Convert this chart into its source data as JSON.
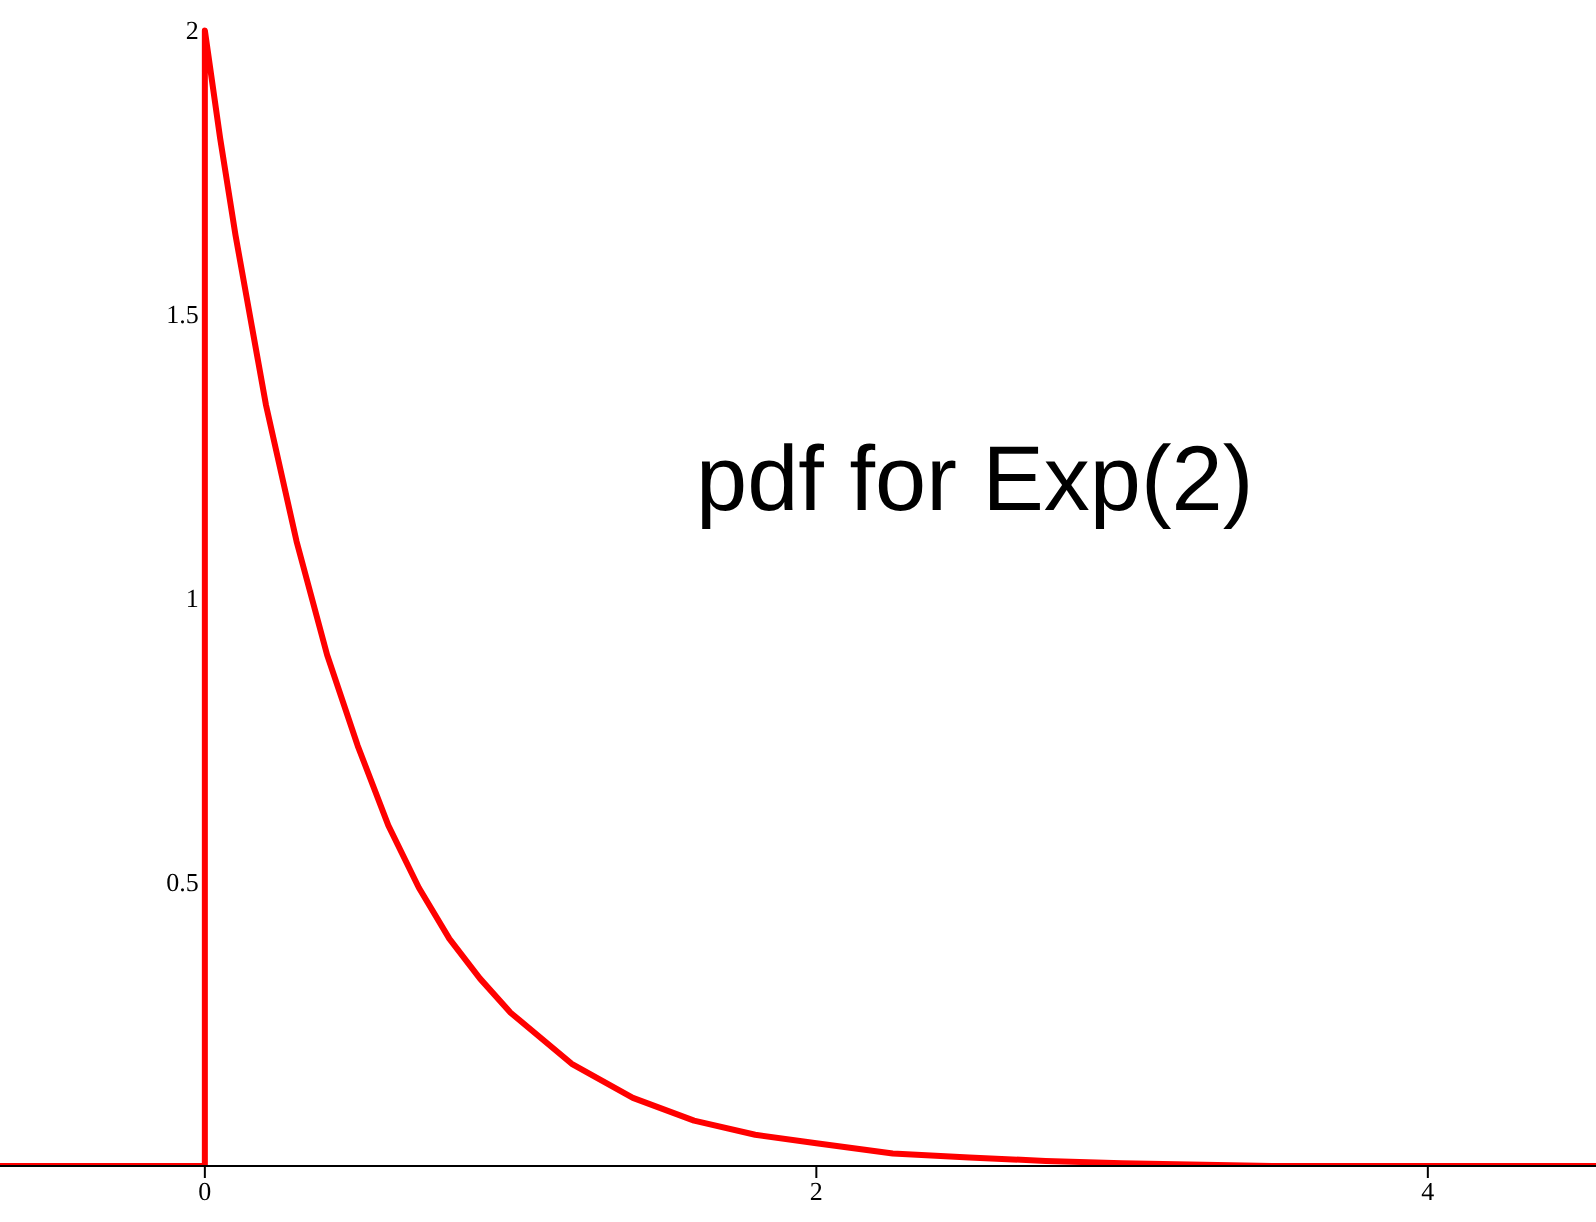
{
  "chart_data": {
    "type": "line",
    "annotations": [
      "pdf for Exp(2)"
    ],
    "series": [
      {
        "color": "#ff0000",
        "x": [
          -0.67,
          0,
          0,
          0.05,
          0.1,
          0.2,
          0.3,
          0.4,
          0.5,
          0.6,
          0.7,
          0.8,
          0.9,
          1.0,
          1.2,
          1.4,
          1.6,
          1.8,
          2.0,
          2.25,
          2.5,
          2.75,
          3.0,
          3.5,
          4.0,
          4.55
        ],
        "values": [
          0,
          0,
          2,
          1.81,
          1.64,
          1.34,
          1.1,
          0.9,
          0.74,
          0.6,
          0.49,
          0.4,
          0.33,
          0.27,
          0.18,
          0.12,
          0.08,
          0.055,
          0.04,
          0.022,
          0.015,
          0.009,
          0.005,
          0,
          0,
          0
        ]
      }
    ],
    "xlim": [
      -0.67,
      4.55
    ],
    "xticks": [
      0,
      2,
      4
    ],
    "ylim": [
      0,
      2.05
    ],
    "yticks": [
      0.5,
      1,
      1.5,
      2
    ],
    "grid": false,
    "marker": "none",
    "line_style": "solid"
  }
}
